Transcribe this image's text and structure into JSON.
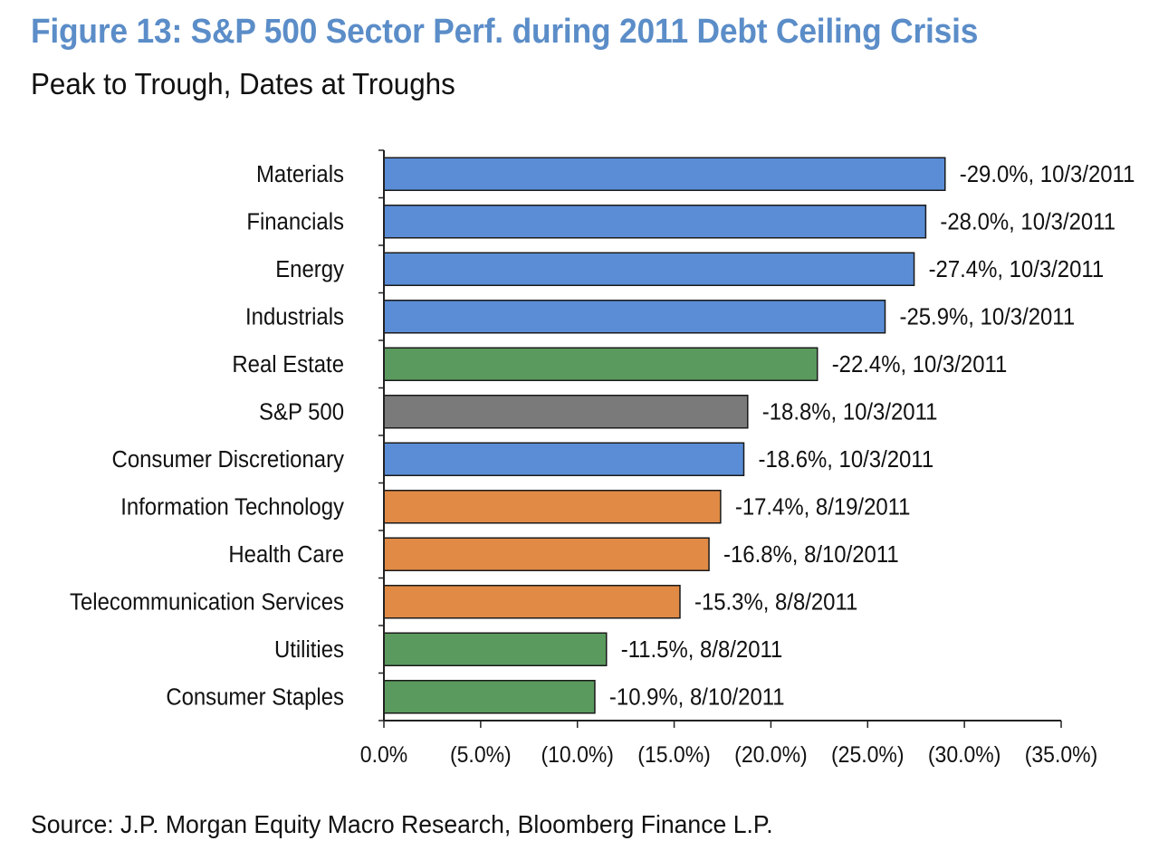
{
  "header": {
    "title": "Figure 13: S&P 500 Sector Perf. during 2011 Debt Ceiling Crisis",
    "subtitle": "Peak to Trough, Dates at Troughs"
  },
  "footer": {
    "source": "Source: J.P. Morgan Equity Macro Research, Bloomberg Finance L.P."
  },
  "colors": {
    "blue": "#5b8dd6",
    "green": "#5a9a5e",
    "gray": "#7a7a7a",
    "orange": "#e08a45",
    "title": "#5b8dc8"
  },
  "chart_data": {
    "type": "bar",
    "orientation": "horizontal",
    "title": "Figure 13: S&P 500 Sector Perf. during 2011 Debt Ceiling Crisis",
    "subtitle": "Peak to Trough, Dates at Troughs",
    "xlabel": "",
    "ylabel": "",
    "xlim": [
      0,
      35
    ],
    "grid": false,
    "x_ticks": [
      0,
      5,
      10,
      15,
      20,
      25,
      30,
      35
    ],
    "x_tick_labels": [
      "0.0%",
      "(5.0%)",
      "(10.0%)",
      "(15.0%)",
      "(20.0%)",
      "(25.0%)",
      "(30.0%)",
      "(35.0%)"
    ],
    "categories": [
      "Materials",
      "Financials",
      "Energy",
      "Industrials",
      "Real Estate",
      "S&P 500",
      "Consumer Discretionary",
      "Information Technology",
      "Health Care",
      "Telecommunication Services",
      "Utilities",
      "Consumer Staples"
    ],
    "values": [
      -29.0,
      -28.0,
      -27.4,
      -25.9,
      -22.4,
      -18.8,
      -18.6,
      -17.4,
      -16.8,
      -15.3,
      -11.5,
      -10.9
    ],
    "trough_dates": [
      "10/3/2011",
      "10/3/2011",
      "10/3/2011",
      "10/3/2011",
      "10/3/2011",
      "10/3/2011",
      "10/3/2011",
      "8/19/2011",
      "8/10/2011",
      "8/8/2011",
      "8/8/2011",
      "8/10/2011"
    ],
    "data_labels": [
      "-29.0%, 10/3/2011",
      "-28.0%, 10/3/2011",
      "-27.4%, 10/3/2011",
      "-25.9%, 10/3/2011",
      "-22.4%, 10/3/2011",
      "-18.8%, 10/3/2011",
      "-18.6%, 10/3/2011",
      "-17.4%, 8/19/2011",
      "-16.8%, 8/10/2011",
      "-15.3%, 8/8/2011",
      "-11.5%, 8/8/2011",
      "-10.9%, 8/10/2011"
    ],
    "bar_colors": [
      "blue",
      "blue",
      "blue",
      "blue",
      "green",
      "gray",
      "blue",
      "orange",
      "orange",
      "orange",
      "green",
      "green"
    ]
  }
}
